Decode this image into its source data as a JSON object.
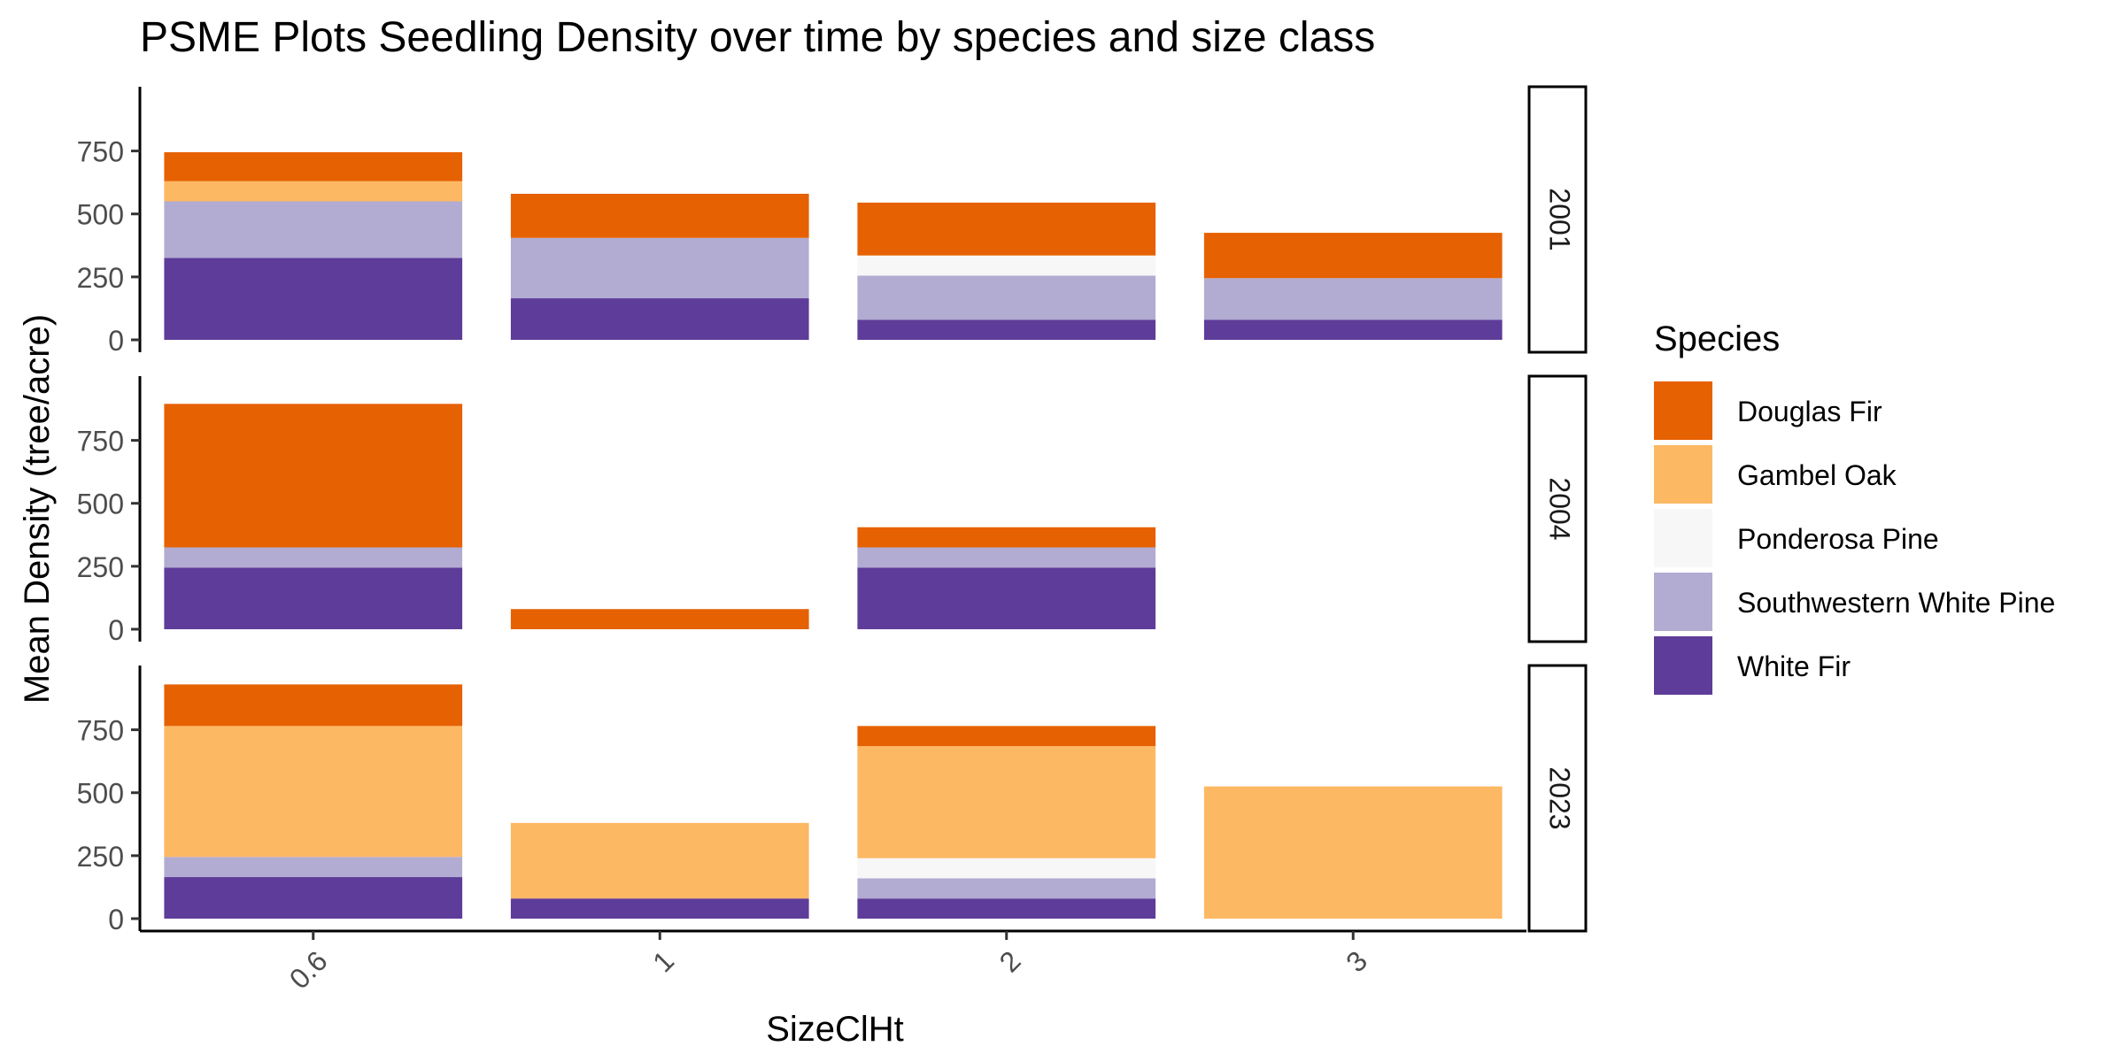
{
  "chart_data": {
    "type": "bar",
    "stacked": true,
    "title": "PSME Plots Seedling Density over time by species and size class",
    "xlabel": "SizeClHt",
    "ylabel": "Mean Density (tree/acre)",
    "categories": [
      "0.6",
      "1",
      "2",
      "3"
    ],
    "ylim": [
      0,
      970
    ],
    "yticks": [
      0,
      250,
      500,
      750
    ],
    "legend": {
      "title": "Species",
      "position": "right",
      "entries": [
        "Douglas Fir",
        "Gambel Oak",
        "Ponderosa Pine",
        "Southwestern White Pine",
        "White Fir"
      ]
    },
    "colors": {
      "White Fir": "#5e3c99",
      "Southwestern White Pine": "#b2abd2",
      "Ponderosa Pine": "#f7f7f7",
      "Gambel Oak": "#fdb863",
      "Douglas Fir": "#e66101"
    },
    "stack_order_bottom_to_top": [
      "White Fir",
      "Southwestern White Pine",
      "Ponderosa Pine",
      "Gambel Oak",
      "Douglas Fir"
    ],
    "facets": [
      {
        "label": "2001",
        "series": [
          {
            "name": "White Fir",
            "values": [
              325,
              165,
              80,
              80
            ]
          },
          {
            "name": "Southwestern White Pine",
            "values": [
              225,
              240,
              175,
              165
            ]
          },
          {
            "name": "Ponderosa Pine",
            "values": [
              0,
              0,
              80,
              0
            ]
          },
          {
            "name": "Gambel Oak",
            "values": [
              80,
              0,
              0,
              0
            ]
          },
          {
            "name": "Douglas Fir",
            "values": [
              115,
              175,
              210,
              180
            ]
          }
        ]
      },
      {
        "label": "2004",
        "series": [
          {
            "name": "White Fir",
            "values": [
              245,
              0,
              245,
              null
            ]
          },
          {
            "name": "Southwestern White Pine",
            "values": [
              80,
              0,
              80,
              null
            ]
          },
          {
            "name": "Ponderosa Pine",
            "values": [
              0,
              0,
              0,
              null
            ]
          },
          {
            "name": "Gambel Oak",
            "values": [
              0,
              0,
              0,
              null
            ]
          },
          {
            "name": "Douglas Fir",
            "values": [
              570,
              80,
              80,
              null
            ]
          }
        ]
      },
      {
        "label": "2023",
        "series": [
          {
            "name": "White Fir",
            "values": [
              165,
              80,
              80,
              0
            ]
          },
          {
            "name": "Southwestern White Pine",
            "values": [
              80,
              0,
              80,
              0
            ]
          },
          {
            "name": "Ponderosa Pine",
            "values": [
              0,
              0,
              80,
              0
            ]
          },
          {
            "name": "Gambel Oak",
            "values": [
              520,
              300,
              445,
              525
            ]
          },
          {
            "name": "Douglas Fir",
            "values": [
              165,
              0,
              80,
              0
            ]
          }
        ]
      }
    ]
  }
}
